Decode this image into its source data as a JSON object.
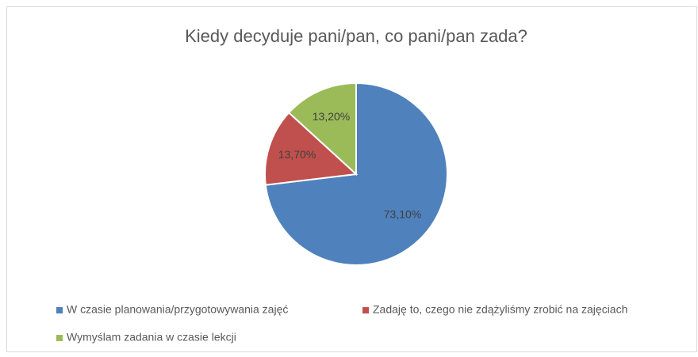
{
  "chart_data": {
    "type": "pie",
    "title": "Kiedy decyduje pani/pan, co pani/pan zada?",
    "categories": [
      "W czasie planowania/przygotowywania zajęć",
      "Zadaję to, czego nie zdążyliśmy zrobić na zajęciach",
      "Wymyślam zadania w czasie lekcji"
    ],
    "values": [
      73.1,
      13.7,
      13.2
    ],
    "value_labels": [
      "73,10%",
      "13,70%",
      "13,20%"
    ],
    "colors": [
      "#4f81bd",
      "#c0504d",
      "#9bbb59"
    ],
    "legend": "bottom"
  }
}
